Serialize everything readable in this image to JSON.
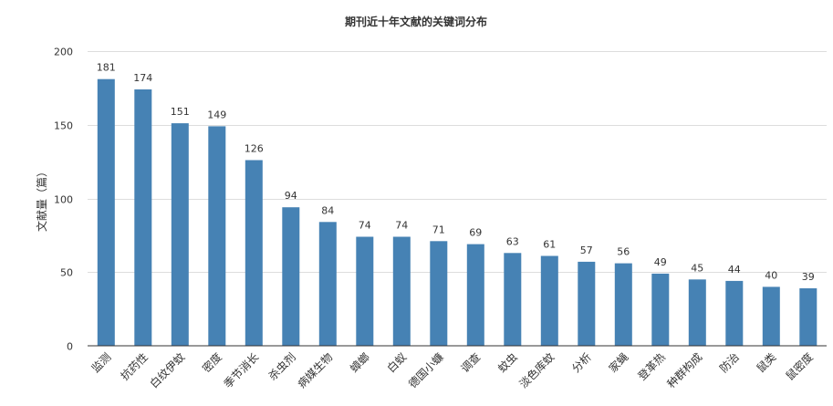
{
  "chart_data": {
    "type": "bar",
    "title": "期刊近十年文献的关键词分布",
    "xlabel": "",
    "ylabel": "文献量（篇）",
    "ylim": [
      0,
      200
    ],
    "yticks": [
      0,
      50,
      100,
      150,
      200
    ],
    "grid": true,
    "bar_color": "#4682B4",
    "categories": [
      "监测",
      "抗药性",
      "白纹伊蚊",
      "密度",
      "季节消长",
      "杀虫剂",
      "病媒生物",
      "蟑螂",
      "白蚁",
      "德国小蠊",
      "调查",
      "蚊虫",
      "淡色库蚊",
      "分析",
      "家蝇",
      "登革热",
      "种群构成",
      "防治",
      "鼠类",
      "鼠密度"
    ],
    "values": [
      181,
      174,
      151,
      149,
      126,
      94,
      84,
      74,
      74,
      71,
      69,
      63,
      61,
      57,
      56,
      49,
      45,
      44,
      40,
      39
    ]
  }
}
